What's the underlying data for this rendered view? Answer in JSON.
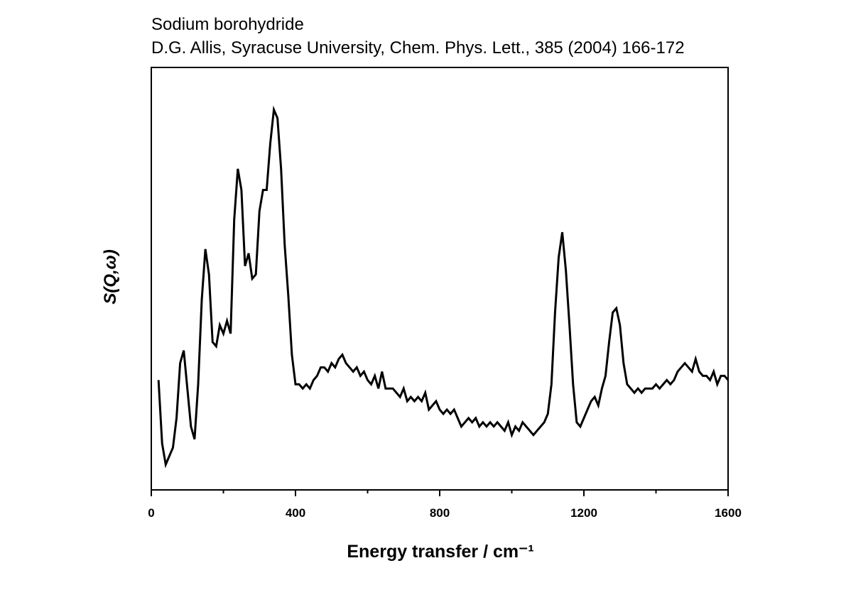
{
  "chart_data": {
    "type": "line",
    "title": "Sodium borohydride",
    "subtitle": "D.G. Allis, Syracuse University, Chem. Phys. Lett., 385 (2004) 166-172",
    "xlabel": "Energy transfer / cm⁻¹",
    "ylabel": "S(Q,ω)",
    "xlim": [
      0,
      1600
    ],
    "xticks": [
      0,
      400,
      800,
      1200,
      1600
    ],
    "x_minor_ticks": [
      200,
      600,
      1000,
      1400
    ],
    "ylim": [
      0,
      100
    ],
    "x": [
      20,
      30,
      40,
      50,
      60,
      70,
      80,
      90,
      100,
      110,
      120,
      130,
      140,
      150,
      160,
      170,
      180,
      190,
      200,
      210,
      220,
      230,
      240,
      250,
      260,
      270,
      280,
      290,
      300,
      310,
      320,
      330,
      340,
      350,
      360,
      370,
      380,
      390,
      400,
      410,
      420,
      430,
      440,
      450,
      460,
      470,
      480,
      490,
      500,
      510,
      520,
      530,
      540,
      550,
      560,
      570,
      580,
      590,
      600,
      610,
      620,
      630,
      640,
      650,
      660,
      670,
      680,
      690,
      700,
      710,
      720,
      730,
      740,
      750,
      760,
      770,
      780,
      790,
      800,
      810,
      820,
      830,
      840,
      850,
      860,
      870,
      880,
      890,
      900,
      910,
      920,
      930,
      940,
      950,
      960,
      970,
      980,
      990,
      1000,
      1010,
      1020,
      1030,
      1040,
      1050,
      1060,
      1070,
      1080,
      1090,
      1100,
      1110,
      1120,
      1130,
      1140,
      1150,
      1160,
      1170,
      1180,
      1190,
      1200,
      1210,
      1220,
      1230,
      1240,
      1250,
      1260,
      1270,
      1280,
      1290,
      1300,
      1310,
      1320,
      1330,
      1340,
      1350,
      1360,
      1370,
      1380,
      1390,
      1400,
      1410,
      1420,
      1430,
      1440,
      1450,
      1460,
      1470,
      1480,
      1490,
      1500,
      1510,
      1520,
      1530,
      1540,
      1550,
      1560,
      1570,
      1580,
      1590,
      1600
    ],
    "series": [
      {
        "name": "S(Q,ω)",
        "color": "#000000",
        "values": [
          26,
          11,
          6,
          8,
          10,
          17,
          30,
          33,
          24,
          15,
          12,
          25,
          45,
          57,
          51,
          35,
          34,
          39,
          37,
          40,
          37,
          64,
          76,
          71,
          53,
          56,
          50,
          51,
          66,
          71,
          71,
          82,
          90,
          88,
          76,
          58,
          46,
          32,
          25,
          25,
          24,
          25,
          24,
          26,
          27,
          29,
          29,
          28,
          30,
          29,
          31,
          32,
          30,
          29,
          28,
          29,
          27,
          28,
          26,
          25,
          27,
          24,
          28,
          24,
          24,
          24,
          23,
          22,
          24,
          21,
          22,
          21,
          22,
          21,
          23,
          19,
          20,
          21,
          19,
          18,
          19,
          18,
          19,
          17,
          15,
          16,
          17,
          16,
          17,
          15,
          16,
          15,
          16,
          15,
          16,
          15,
          14,
          16,
          13,
          15,
          14,
          16,
          15,
          14,
          13,
          14,
          15,
          16,
          18,
          25,
          42,
          55,
          61,
          52,
          39,
          25,
          16,
          15,
          17,
          19,
          21,
          22,
          20,
          24,
          27,
          35,
          42,
          43,
          39,
          30,
          25,
          24,
          23,
          24,
          23,
          24,
          24,
          24,
          25,
          24,
          25,
          26,
          25,
          26,
          28,
          29,
          30,
          29,
          28,
          31,
          28,
          27,
          27,
          26,
          28,
          25,
          27,
          27,
          26
        ]
      }
    ]
  }
}
